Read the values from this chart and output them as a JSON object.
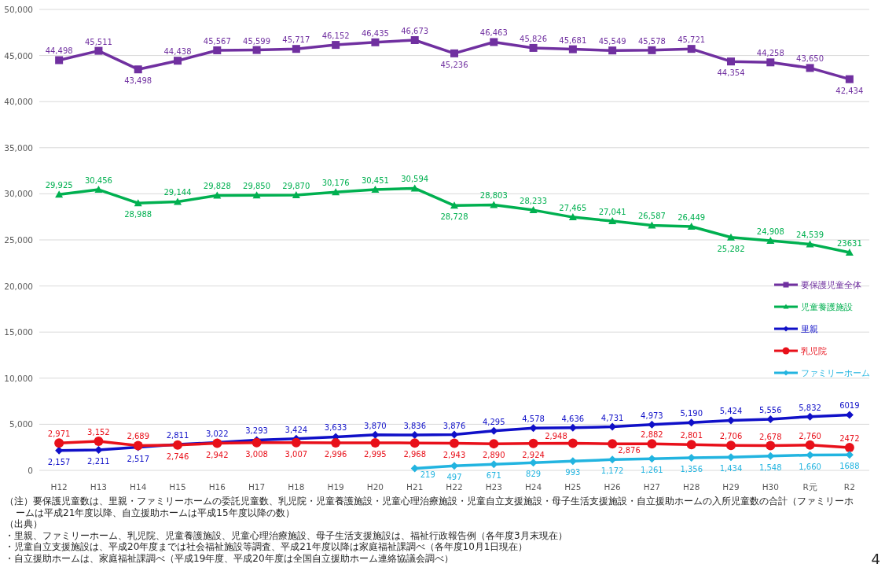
{
  "chart_data": {
    "type": "line",
    "categories": [
      "H12",
      "H13",
      "H14",
      "H15",
      "H16",
      "H17",
      "H18",
      "H19",
      "H20",
      "H21",
      "H22",
      "H23",
      "H24",
      "H25",
      "H26",
      "H27",
      "H28",
      "H29",
      "H30",
      "R元",
      "R2"
    ],
    "ylim": [
      0,
      50000
    ],
    "yticks": [
      {
        "value": 0,
        "label": "0"
      },
      {
        "value": 5000,
        "label": "5,000"
      },
      {
        "value": 10000,
        "label": "10,000"
      },
      {
        "value": 15000,
        "label": "15,000"
      },
      {
        "value": 20000,
        "label": "20,000"
      },
      {
        "value": 25000,
        "label": "25,000"
      },
      {
        "value": 30000,
        "label": "30,000"
      },
      {
        "value": 35000,
        "label": "35,000"
      },
      {
        "value": 40000,
        "label": "40,000"
      },
      {
        "value": 45000,
        "label": "45,000"
      },
      {
        "value": 50000,
        "label": "50,000"
      }
    ],
    "grid": "y",
    "legend": "right",
    "series": [
      {
        "name": "要保護児童全体",
        "color": "#7030a0",
        "marker": "square",
        "values": [
          44498,
          45511,
          43498,
          44438,
          45567,
          45599,
          45717,
          46152,
          46435,
          46673,
          45236,
          46463,
          45826,
          45681,
          45549,
          45578,
          45721,
          44354,
          44258,
          43650,
          42434
        ],
        "value_labels": [
          "44,498",
          "45,511",
          "43,498",
          "44,438",
          "45,567",
          "45,599",
          "45,717",
          "46,152",
          "46,435",
          "46,673",
          "45,236",
          "46,463",
          "45,826",
          "45,681",
          "45,549",
          "45,578",
          "45,721",
          "44,354",
          "44,258",
          "43,650",
          "42,434"
        ]
      },
      {
        "name": "児童養護施設",
        "color": "#00b050",
        "marker": "triangle",
        "values": [
          29925,
          30456,
          28988,
          29144,
          29828,
          29850,
          29870,
          30176,
          30451,
          30594,
          28728,
          28803,
          28233,
          27465,
          27041,
          26587,
          26449,
          25282,
          24908,
          24539,
          23631
        ],
        "value_labels": [
          "29,925",
          "30,456",
          "28,988",
          "29,144",
          "29,828",
          "29,850",
          "29,870",
          "30,176",
          "30,451",
          "30,594",
          "28,728",
          "28,803",
          "28,233",
          "27,465",
          "27,041",
          "26,587",
          "26,449",
          "25,282",
          "24,908",
          "24,539",
          "23631"
        ]
      },
      {
        "name": "里親",
        "color": "#1010c8",
        "marker": "diamond",
        "values": [
          2157,
          2211,
          2517,
          2811,
          3022,
          3293,
          3424,
          3633,
          3870,
          3836,
          3876,
          4295,
          4578,
          4636,
          4731,
          4973,
          5190,
          5424,
          5556,
          5832,
          6019
        ],
        "value_labels": [
          "2,157",
          "2,211",
          "2,517",
          "2,811",
          "3,022",
          "3,293",
          "3,424",
          "3,633",
          "3,870",
          "3,836",
          "3,876",
          "4,295",
          "4,578",
          "4,636",
          "4,731",
          "4,973",
          "5,190",
          "5,424",
          "5,556",
          "5,832",
          "6019"
        ]
      },
      {
        "name": "乳児院",
        "color": "#e8101a",
        "marker": "circle",
        "values": [
          2971,
          3152,
          2689,
          2746,
          2942,
          3008,
          3007,
          2996,
          2995,
          2968,
          2943,
          2890,
          2924,
          2948,
          2876,
          2882,
          2801,
          2706,
          2678,
          2760,
          2472
        ],
        "value_labels": [
          "2,971",
          "3,152",
          "2,689",
          "2,746",
          "2,942",
          "3,008",
          "3,007",
          "2,996",
          "2,995",
          "2,968",
          "2,943",
          "2,890",
          "2,924",
          "2,948",
          "2,876",
          "2,882",
          "2,801",
          "2,706",
          "2,678",
          "2,760",
          "2472"
        ]
      },
      {
        "name": "ファミリーホーム",
        "color": "#22b4e0",
        "marker": "diamond",
        "values": [
          null,
          null,
          null,
          null,
          null,
          null,
          null,
          null,
          null,
          219,
          497,
          671,
          829,
          993,
          1172,
          1261,
          1356,
          1434,
          1548,
          1660,
          1688
        ],
        "value_labels": [
          null,
          null,
          null,
          null,
          null,
          null,
          null,
          null,
          null,
          "219",
          "497",
          "671",
          "829",
          "993",
          "1,172",
          "1,261",
          "1,356",
          "1,434",
          "1,548",
          "1,660",
          "1688"
        ]
      }
    ],
    "annotations": [
      "（注）要保護児童数は、里親・ファミリーホームの委託児童数、乳児院・児童養護施設・児童心理治療施設・児童自立支援施設・母子生活支援施設・自立援助ホームの入所児童数の合計（ファミリーホームは平成21年度以降、自立援助ホームは平成15年度以降の数）",
      "（出典）",
      "・里親、ファミリーホーム、乳児院、児童養護施設、児童心理治療施設、母子生活支援施設は、福祉行政報告例（各年度3月末現在）",
      "・児童自立支援施設は、平成20年度までは社会福祉施設等調査、平成21年度以降は家庭福祉課調べ（各年度10月1日現在）",
      "・自立援助ホームは、家庭福祉課調べ（平成19年度、平成20年度は全国自立援助ホーム連絡協議会調べ）",
      "4"
    ]
  }
}
